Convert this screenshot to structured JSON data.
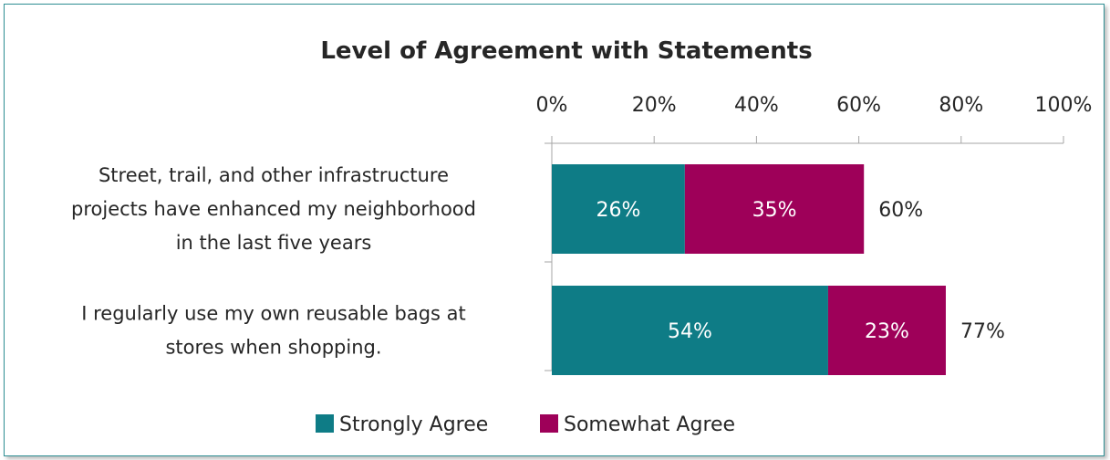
{
  "chart_data": {
    "type": "bar",
    "orientation": "horizontal",
    "stacked": true,
    "title": "Level of Agreement with Statements",
    "categories": [
      "Street, trail, and other infrastructure projects have enhanced my neighborhood in the last five years",
      "I regularly use my own reusable bags at stores when shopping."
    ],
    "category_lines": [
      [
        "Street, trail, and other infrastructure",
        "projects have enhanced my neighborhood",
        "in the last five years"
      ],
      [
        "I regularly use my own reusable bags at",
        "stores when shopping."
      ]
    ],
    "series": [
      {
        "name": "Strongly Agree",
        "values": [
          26,
          54
        ],
        "labels": [
          "26%",
          "54%"
        ],
        "color": "#0e7c86"
      },
      {
        "name": "Somewhat Agree",
        "values": [
          35,
          23
        ],
        "labels": [
          "35%",
          "23%"
        ],
        "color": "#9e0059"
      }
    ],
    "totals": [
      60,
      77
    ],
    "total_labels": [
      "60%",
      "77%"
    ],
    "xlim": [
      0,
      100
    ],
    "xticks": [
      0,
      20,
      40,
      60,
      80,
      100
    ],
    "xtick_labels": [
      "0%",
      "20%",
      "40%",
      "60%",
      "80%",
      "100%"
    ],
    "axis_position": "top",
    "grid": false,
    "legend": "bottom"
  }
}
